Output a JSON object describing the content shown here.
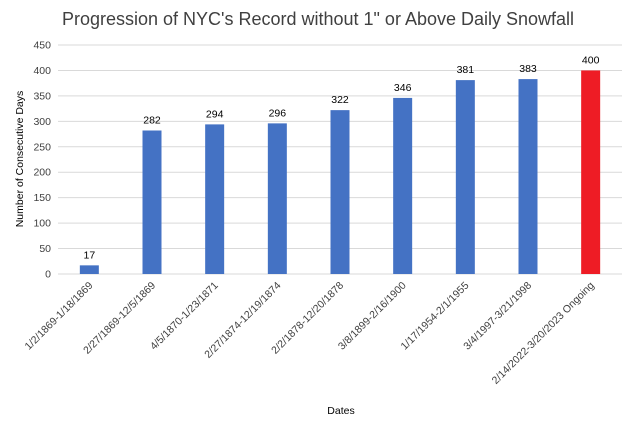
{
  "chart_data": {
    "type": "bar",
    "title": "Progression of NYC's Record without 1\" or Above Daily Snowfall",
    "xlabel": "Dates",
    "ylabel": "Number of Consecutive Days",
    "ylim": [
      0,
      450
    ],
    "yticks": [
      0,
      50,
      100,
      150,
      200,
      250,
      300,
      350,
      400,
      450
    ],
    "grid": true,
    "legend": "none",
    "categories": [
      "1/2/1869-1/18/1869",
      "2/27/1869-12/5/1869",
      "4/5/1870-1/23/1871",
      "2/27/1874-12/19/1874",
      "2/2/1878-12/20/1878",
      "3/8/1899-2/16/1900",
      "1/17/1954-2/1/1955",
      "3/4/1997-3/21/1998",
      "2/14/2022-3/20/2023 Ongoing"
    ],
    "values": [
      17,
      282,
      294,
      296,
      322,
      346,
      381,
      383,
      400
    ],
    "bar_colors": [
      "#4472C4",
      "#4472C4",
      "#4472C4",
      "#4472C4",
      "#4472C4",
      "#4472C4",
      "#4472C4",
      "#4472C4",
      "#EE1C25"
    ],
    "colors": {
      "primary": "#4472C4",
      "highlight": "#EE1C25",
      "grid": "#D9D9D9",
      "text": "#404040",
      "label": "#000000"
    }
  }
}
